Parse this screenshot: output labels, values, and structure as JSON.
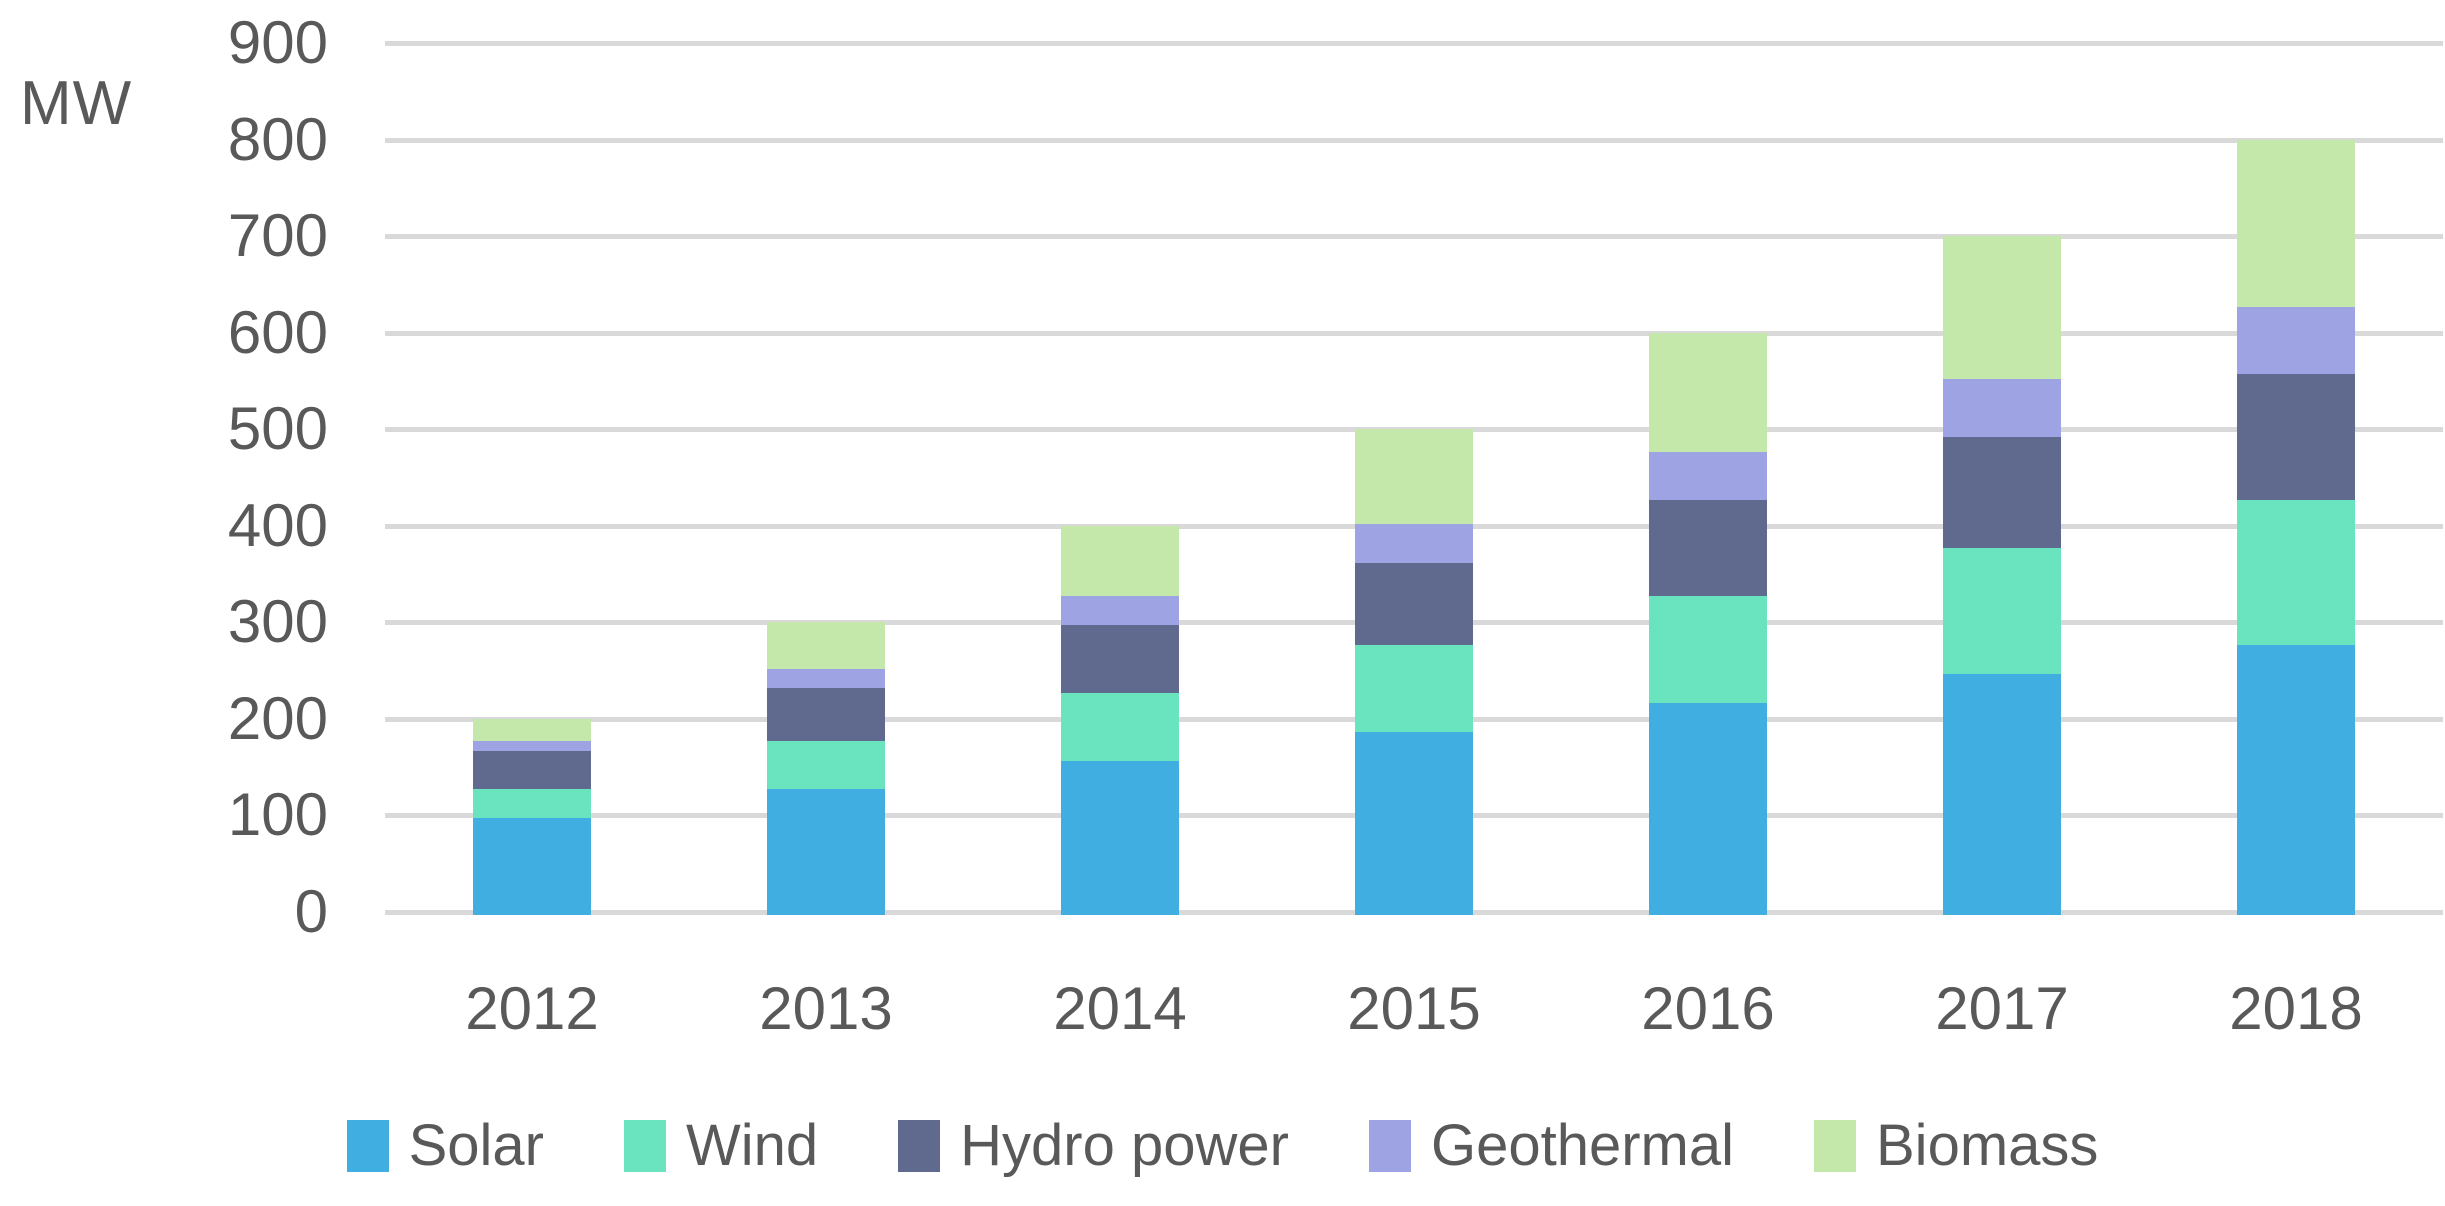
{
  "chart_data": {
    "type": "bar",
    "stacked": true,
    "title": "",
    "ylabel": "MW",
    "xlabel": "",
    "categories": [
      "2012",
      "2013",
      "2014",
      "2015",
      "2016",
      "2017",
      "2018"
    ],
    "series": [
      {
        "name": "Solar",
        "color": "#40AEE0",
        "values": [
          100,
          130,
          160,
          190,
          220,
          250,
          280
        ]
      },
      {
        "name": "Wind",
        "color": "#6AE3BF",
        "values": [
          30,
          50,
          70,
          90,
          110,
          130,
          150
        ]
      },
      {
        "name": "Hydro power",
        "color": "#5F6A8E",
        "values": [
          40,
          55,
          70,
          85,
          100,
          115,
          130
        ]
      },
      {
        "name": "Geothermal",
        "color": "#9EA3E3",
        "values": [
          10,
          20,
          30,
          40,
          50,
          60,
          70
        ]
      },
      {
        "name": "Biomass",
        "color": "#C4E7AA",
        "values": [
          20,
          45,
          70,
          95,
          120,
          145,
          170
        ]
      }
    ],
    "totals": [
      200,
      300,
      400,
      500,
      600,
      700,
      800
    ],
    "ylim": [
      0,
      900
    ],
    "ytick_interval": 100,
    "yticks": [
      "900",
      "800",
      "700",
      "600",
      "500",
      "400",
      "300",
      "200",
      "100",
      "0"
    ],
    "grid": true,
    "gridline_color": "#D9D9D9",
    "text_color": "#595959",
    "legend_position": "bottom",
    "legend_labels": [
      "Solar",
      "Wind",
      "Hydro power",
      "Geothermal",
      "Biomass"
    ]
  }
}
